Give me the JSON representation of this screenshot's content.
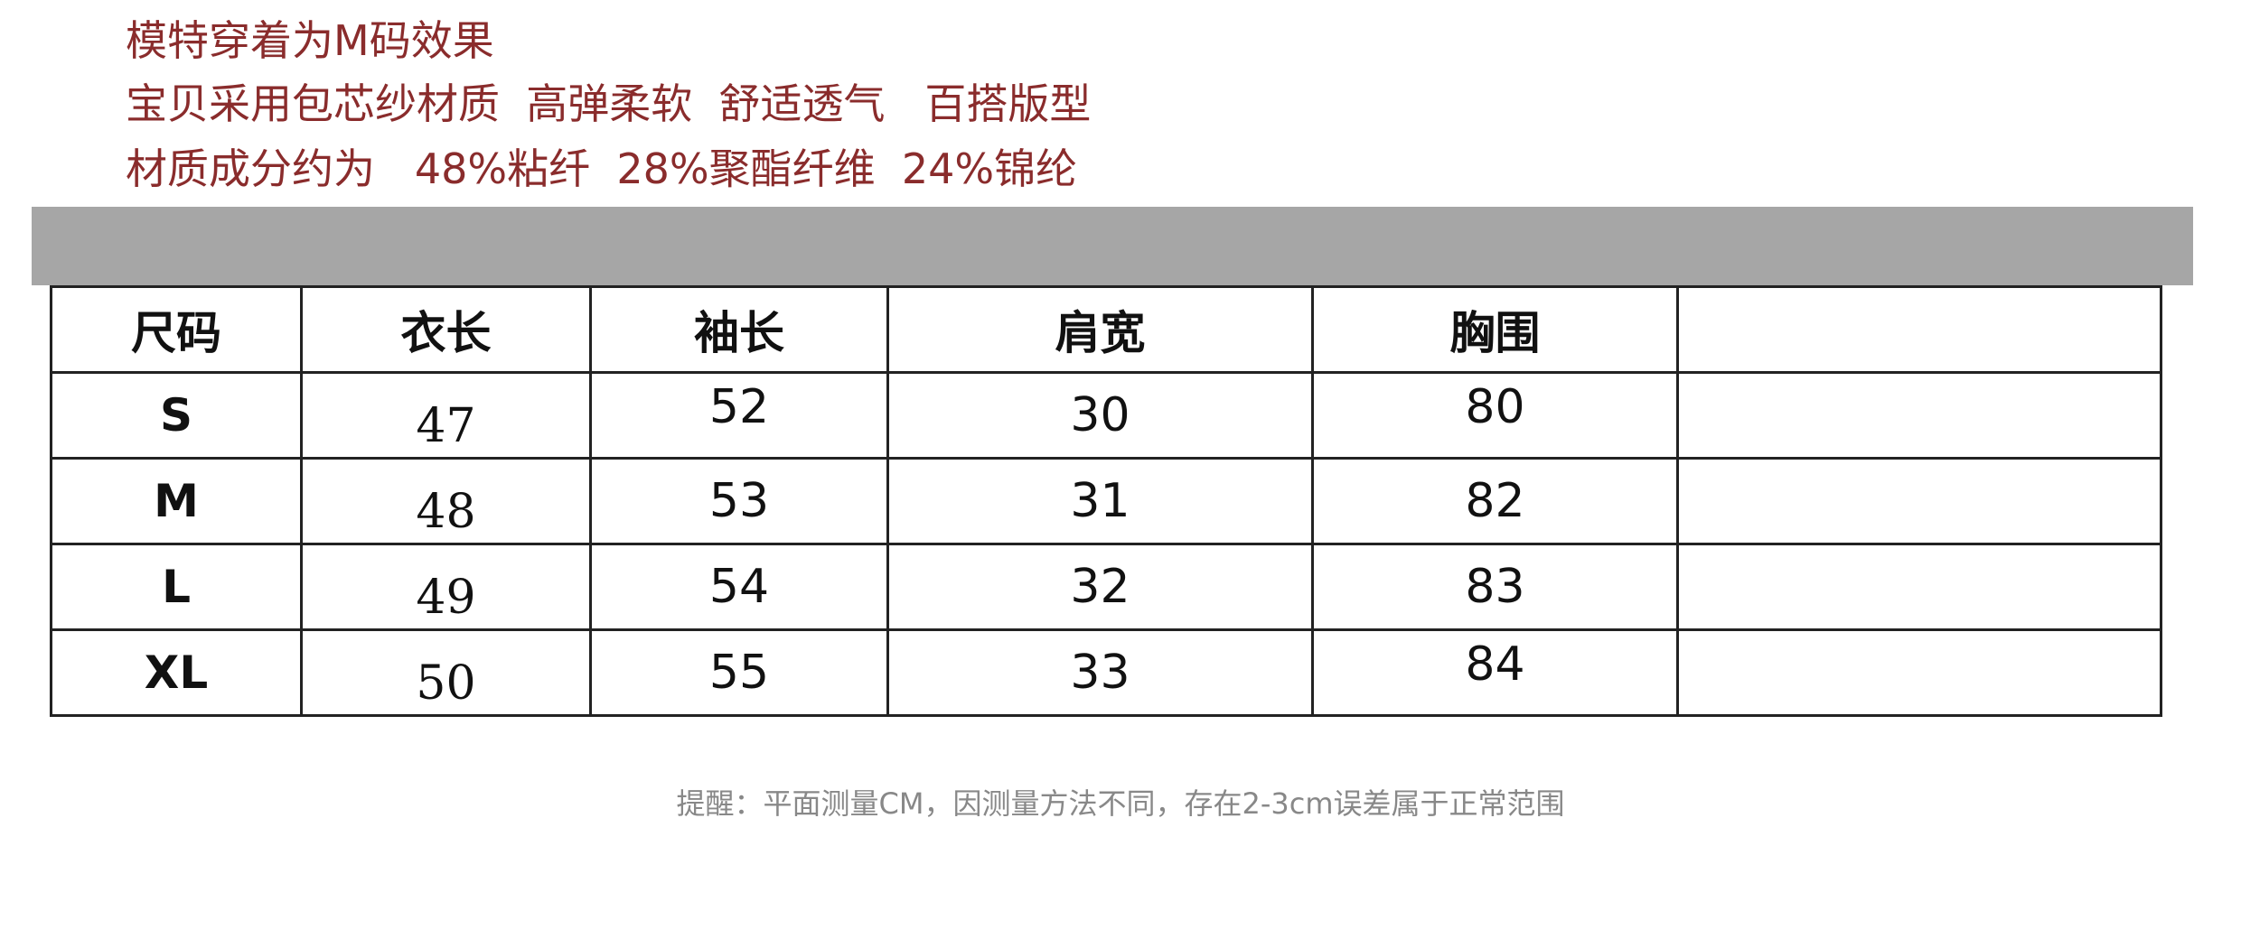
{
  "intro": [
    "模特穿着为M码效果",
    "宝贝采用包芯纱材质  高弹柔软  舒适透气   百搭版型",
    "材质成分约为   48%粘纤  28%聚酯纤维  24%锦纶"
  ],
  "table": {
    "headers": [
      "尺码",
      "衣长",
      "袖长",
      "肩宽",
      "胸围",
      ""
    ],
    "rows": [
      [
        "S",
        "47",
        "52",
        "30",
        "80",
        ""
      ],
      [
        "M",
        "48",
        "53",
        "31",
        "82",
        ""
      ],
      [
        "L",
        "49",
        "54",
        "32",
        "83",
        ""
      ],
      [
        "XL",
        "50",
        "55",
        "33",
        "84",
        ""
      ]
    ]
  },
  "note": "提醒：平面测量CM，因测量方法不同，存在2-3cm误差属于正常范围",
  "colors": {
    "intro_text": "#8a2c2c",
    "header_bar": "#a6a6a6",
    "note_text": "#888888"
  }
}
